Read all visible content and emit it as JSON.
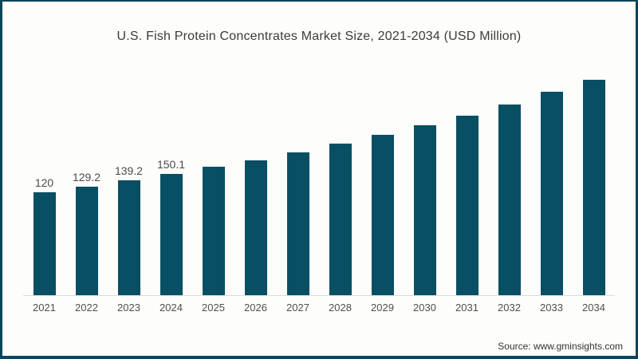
{
  "frame": {
    "source": "Source: www.gminsights.com"
  },
  "colors": {
    "bar": "#084F63",
    "frame_border": "#0C455A",
    "axis_line": "#D9DCDE",
    "background": "#FDFDFC",
    "title_text": "#3B3B3B",
    "value_label_text": "#4A4A4A",
    "tick_text": "#4F4F4F",
    "source_text": "#333333"
  },
  "chart_data": {
    "type": "bar",
    "title": "U.S. Fish Protein Concentrates Market Size, 2021-2034 (USD Million)",
    "categories": [
      "2021",
      "2022",
      "2023",
      "2024",
      "2025",
      "2026",
      "2027",
      "2028",
      "2029",
      "2030",
      "2031",
      "2032",
      "2033",
      "2034"
    ],
    "values": [
      120,
      129.2,
      139.2,
      150.1,
      162,
      172.5,
      185.5,
      200,
      214.5,
      230,
      246,
      264,
      285,
      305
    ],
    "data_labels": [
      "120",
      "129.2",
      "139.2",
      "150.1",
      "",
      "",
      "",
      "",
      "",
      "",
      "",
      "",
      "",
      ""
    ],
    "xlabel": "",
    "ylabel": "",
    "legend": "none",
    "gridlines": false,
    "y_axis_visible": false,
    "source": "Source: www.gminsights.com"
  }
}
